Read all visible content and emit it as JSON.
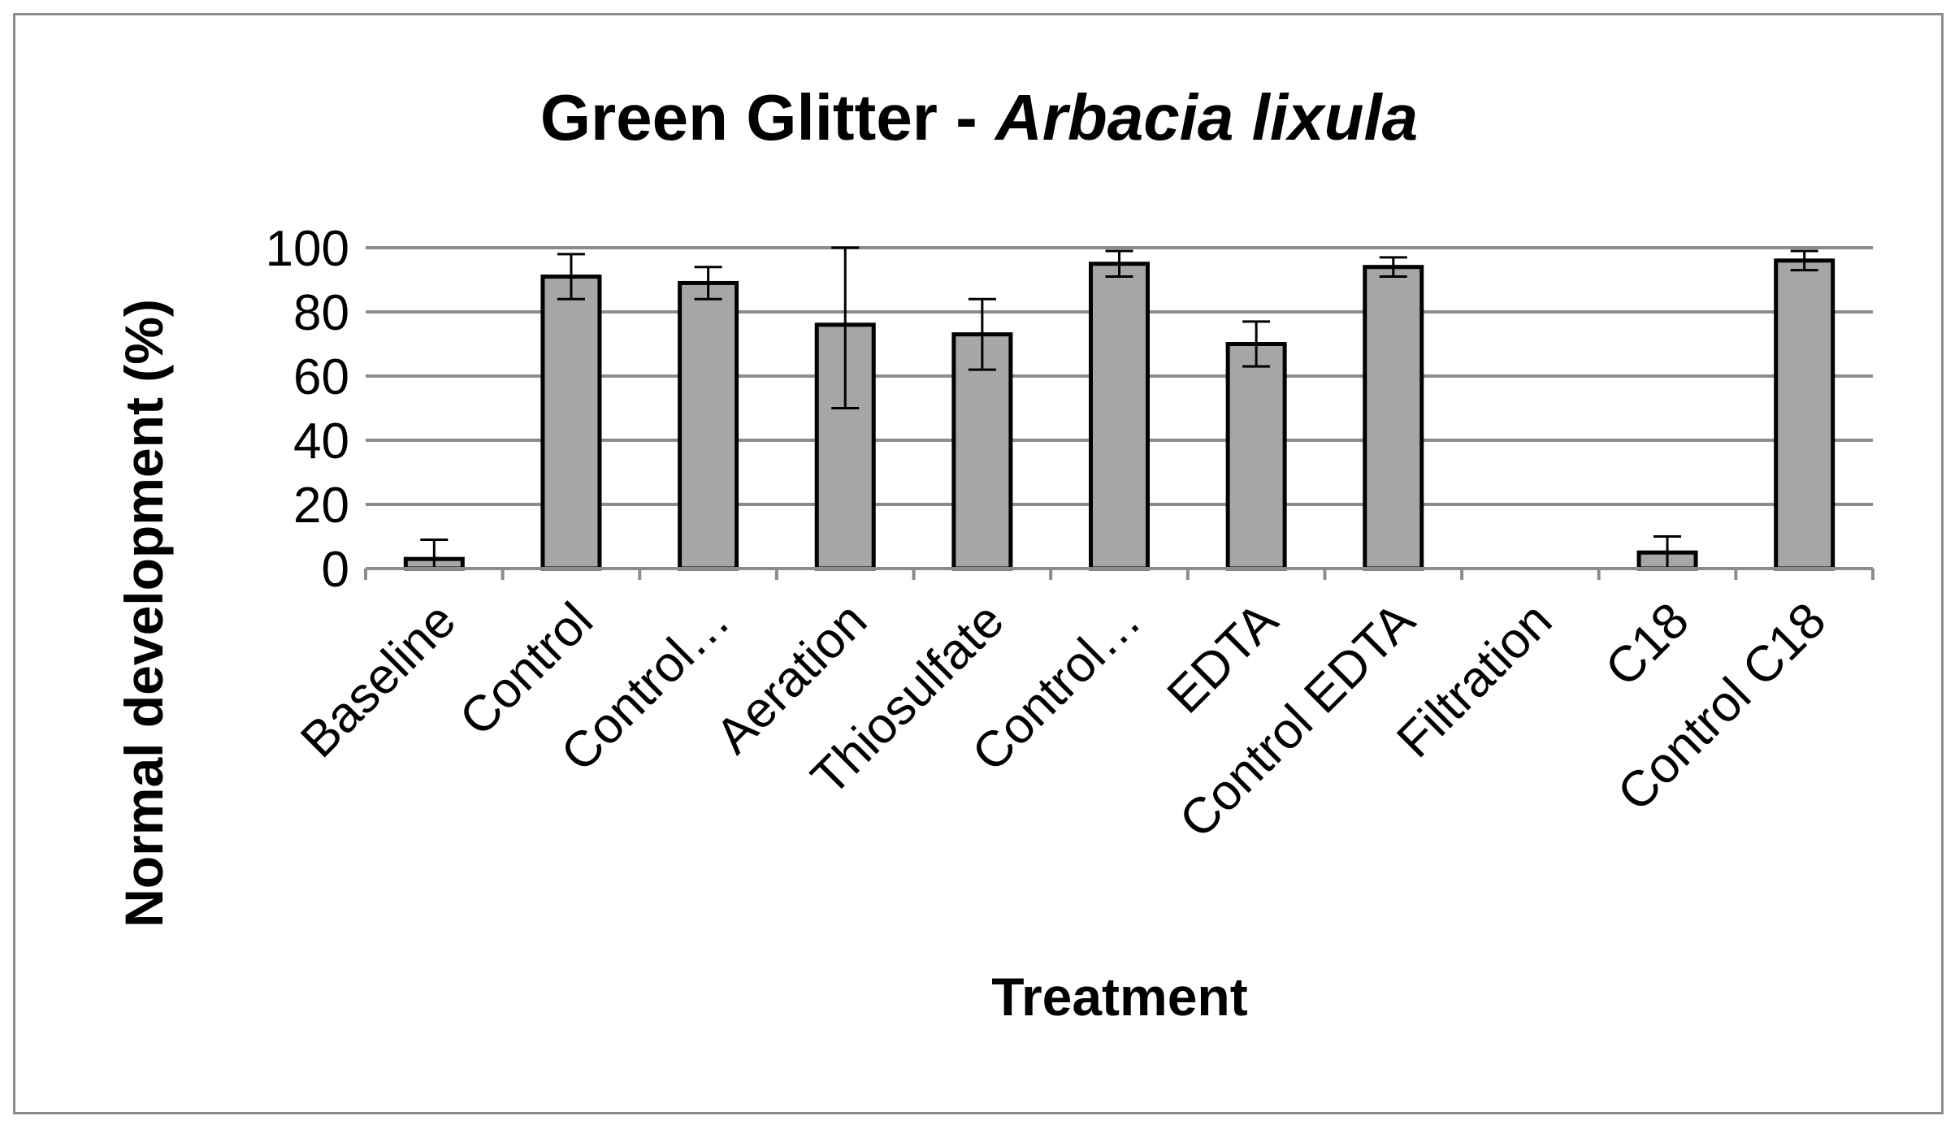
{
  "chart_data": {
    "type": "bar",
    "title_main": "Green Glitter - ",
    "title_species": "Arbacia lixula",
    "xlabel": "Treatment",
    "ylabel": "Normal development (%)",
    "ylim": [
      0,
      100
    ],
    "yticks": [
      "0",
      "20",
      "40",
      "60",
      "80",
      "100"
    ],
    "grid": true,
    "legend": "none",
    "categories": [
      "Baseline",
      "Control",
      "Control…",
      "Aeration",
      "Thiosulfate",
      "Control…",
      "EDTA",
      "Control EDTA",
      "Filtration",
      "C18",
      "Control C18"
    ],
    "values": [
      3,
      91,
      89,
      76,
      73,
      95,
      70,
      94,
      0,
      5,
      96
    ],
    "error": [
      6,
      7,
      5,
      26,
      11,
      4,
      7,
      3,
      0,
      5,
      3
    ],
    "colors": {
      "bar": "#a6a6a6",
      "bar_edge": "#000000",
      "grid": "#8c8c8c",
      "error": "#000000"
    }
  }
}
